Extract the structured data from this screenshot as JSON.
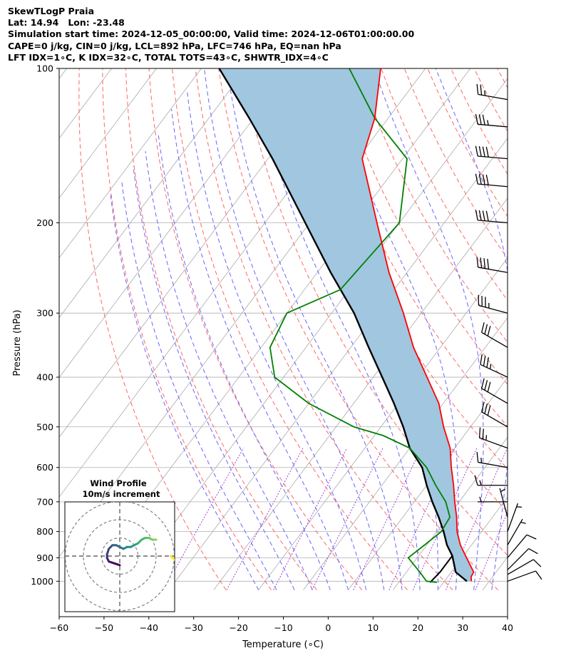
{
  "header": {
    "line1": "SkewTLogP Praia",
    "line2": "Lat: 14.94   Lon: -23.48",
    "line3": "Simulation start time: 2024-12-05_00:00:00, Valid time: 2024-12-06T01:00:00.00",
    "line4": "CAPE=0 j/kg, CIN=0 j/kg, LCL=892 hPa, LFC=746 hPa, EQ=nan hPa",
    "line5": "LFT IDX=1∘C, K IDX=32∘C, TOTAL TOTS=43∘C, SHWTR_IDX=4∘C"
  },
  "colors": {
    "temperature": "#ff0000",
    "dewpoint": "#008000",
    "parcel": "#000000",
    "cape_fill": "#a0c6e0",
    "dry_adiabat": "#ff6666",
    "moist_adiabat": "#6666ff",
    "mixing_ratio": "#9933cc",
    "isotherm": "#aaaaaa"
  },
  "chart_data": {
    "type": "skewt",
    "xlabel": "Temperature (∘C)",
    "ylabel": "Pressure (hPa)",
    "xlim": [
      -60,
      40
    ],
    "ylim": [
      1040,
      100
    ],
    "x_ticks": [
      "−60",
      "−50",
      "−40",
      "−30",
      "−20",
      "−10",
      "0",
      "10",
      "20",
      "30",
      "40"
    ],
    "x_tick_values": [
      -60,
      -50,
      -40,
      -30,
      -20,
      -10,
      0,
      10,
      20,
      30,
      40
    ],
    "y_ticks": [
      "1000",
      "900",
      "800",
      "700",
      "600",
      "500",
      "400",
      "300",
      "200",
      "100"
    ],
    "y_tick_values": [
      1000,
      900,
      800,
      700,
      600,
      500,
      400,
      300,
      200,
      100
    ],
    "series": [
      {
        "name": "Temperature",
        "color": "#ff0000",
        "points": [
          [
            1000,
            26
          ],
          [
            980,
            25.2
          ],
          [
            960,
            25
          ],
          [
            900,
            21
          ],
          [
            850,
            17.5
          ],
          [
            800,
            14.5
          ],
          [
            750,
            12
          ],
          [
            700,
            9
          ],
          [
            650,
            6
          ],
          [
            600,
            2.5
          ],
          [
            550,
            -1
          ],
          [
            500,
            -6
          ],
          [
            450,
            -11
          ],
          [
            400,
            -18
          ],
          [
            350,
            -26
          ],
          [
            300,
            -34
          ],
          [
            250,
            -44
          ],
          [
            200,
            -55
          ],
          [
            150,
            -69
          ],
          [
            125,
            -73
          ],
          [
            100,
            -80
          ]
        ]
      },
      {
        "name": "Dewpoint",
        "color": "#008000",
        "points": [
          [
            1005,
            18.5
          ],
          [
            1000,
            16
          ],
          [
            960,
            13
          ],
          [
            900,
            8
          ],
          [
            850,
            9.5
          ],
          [
            800,
            11
          ],
          [
            750,
            10.5
          ],
          [
            700,
            7
          ],
          [
            650,
            2
          ],
          [
            600,
            -3
          ],
          [
            550,
            -10
          ],
          [
            520,
            -18
          ],
          [
            500,
            -26
          ],
          [
            450,
            -40
          ],
          [
            400,
            -52
          ],
          [
            350,
            -58
          ],
          [
            300,
            -60
          ],
          [
            270,
            -52
          ],
          [
            200,
            -50
          ],
          [
            150,
            -59
          ],
          [
            125,
            -73
          ],
          [
            100,
            -87
          ]
        ]
      },
      {
        "name": "Parcel profile",
        "color": "#000000",
        "points": [
          [
            1000,
            25
          ],
          [
            960,
            21
          ],
          [
            892,
            17.5
          ],
          [
            850,
            14.5
          ],
          [
            800,
            11.5
          ],
          [
            750,
            8
          ],
          [
            700,
            4
          ],
          [
            650,
            0
          ],
          [
            600,
            -4
          ],
          [
            550,
            -10
          ],
          [
            500,
            -15
          ],
          [
            450,
            -21
          ],
          [
            400,
            -28
          ],
          [
            350,
            -36
          ],
          [
            300,
            -45
          ],
          [
            250,
            -57
          ],
          [
            200,
            -71
          ],
          [
            150,
            -89
          ],
          [
            125,
            -101
          ],
          [
            100,
            -116
          ]
        ]
      },
      {
        "name": "Surface segment",
        "color": "#000000",
        "points": [
          [
            1005,
            17
          ],
          [
            960,
            17.5
          ],
          [
            892,
            17.5
          ]
        ]
      }
    ],
    "shading": {
      "name": "CAPE/CIN region",
      "between": [
        "Temperature",
        "Parcel profile"
      ],
      "color": "#a0c6e0"
    },
    "wind_barbs": [
      {
        "p": 1000,
        "speed": 10,
        "dir": 70
      },
      {
        "p": 970,
        "speed": 12,
        "dir": 60
      },
      {
        "p": 950,
        "speed": 10,
        "dir": 45
      },
      {
        "p": 900,
        "speed": 10,
        "dir": 40
      },
      {
        "p": 850,
        "speed": 8,
        "dir": 30
      },
      {
        "p": 800,
        "speed": 5,
        "dir": 20
      },
      {
        "p": 750,
        "speed": 5,
        "dir": 345
      },
      {
        "p": 700,
        "speed": 5,
        "dir": 270
      },
      {
        "p": 650,
        "speed": 15,
        "dir": 270
      },
      {
        "p": 600,
        "speed": 15,
        "dir": 280
      },
      {
        "p": 550,
        "speed": 25,
        "dir": 290
      },
      {
        "p": 500,
        "speed": 30,
        "dir": 300
      },
      {
        "p": 450,
        "speed": 30,
        "dir": 300
      },
      {
        "p": 400,
        "speed": 35,
        "dir": 295
      },
      {
        "p": 350,
        "speed": 30,
        "dir": 300
      },
      {
        "p": 300,
        "speed": 35,
        "dir": 285
      },
      {
        "p": 250,
        "speed": 40,
        "dir": 280
      },
      {
        "p": 200,
        "speed": 40,
        "dir": 275
      },
      {
        "p": 170,
        "speed": 40,
        "dir": 275
      },
      {
        "p": 150,
        "speed": 40,
        "dir": 275
      },
      {
        "p": 130,
        "speed": 35,
        "dir": 275
      },
      {
        "p": 115,
        "speed": 25,
        "dir": 280
      }
    ],
    "hodograph": {
      "title_line1": "Wind Profile",
      "title_line2": "10m/s increment",
      "ring_values": [
        10,
        20,
        30
      ],
      "points": [
        [
          0,
          -5
        ],
        [
          -3,
          -4
        ],
        [
          -6,
          -3
        ],
        [
          -7,
          -1
        ],
        [
          -7,
          1
        ],
        [
          -6,
          4
        ],
        [
          -4,
          6
        ],
        [
          -2,
          6
        ],
        [
          0,
          5
        ],
        [
          2,
          4
        ],
        [
          4,
          5
        ],
        [
          6,
          5
        ],
        [
          8,
          6
        ],
        [
          10,
          7
        ],
        [
          12,
          9
        ],
        [
          14,
          10
        ],
        [
          16,
          10
        ],
        [
          18,
          9
        ],
        [
          20,
          9
        ]
      ],
      "gap_points": [
        [
          28,
          0
        ],
        [
          29,
          -1
        ],
        [
          30,
          -2
        ]
      ]
    }
  }
}
